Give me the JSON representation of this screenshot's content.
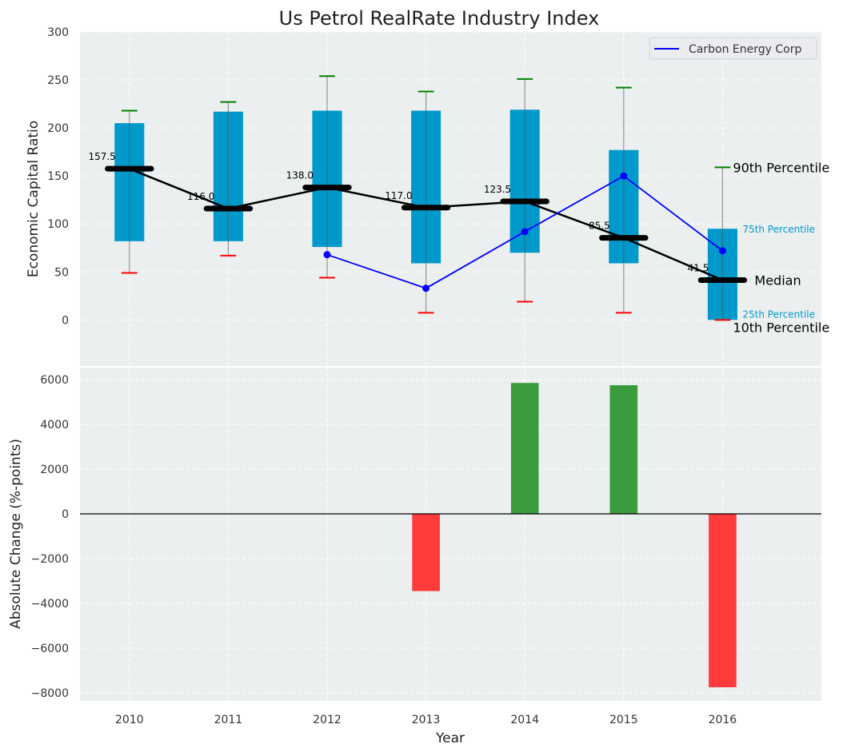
{
  "chart_data": [
    {
      "type": "box",
      "title": "Us Petrol RealRate Industry Index",
      "xlabel": "",
      "ylabel": "Economic Capital Ratio",
      "ylim": [
        -48,
        300
      ],
      "yticks": [
        0,
        50,
        100,
        150,
        200,
        250,
        300
      ],
      "grid": true,
      "categories": [
        2010,
        2011,
        2012,
        2013,
        2014,
        2015,
        2016
      ],
      "p10": [
        49,
        67,
        44,
        7.5,
        19,
        7.5,
        0
      ],
      "p25": [
        82,
        82,
        76,
        59,
        70,
        59,
        0
      ],
      "median": [
        157.5,
        116.0,
        138.0,
        117.0,
        123.5,
        85.5,
        41.5
      ],
      "median_labels": [
        "157.5",
        "116.0",
        "138.0",
        "117.0",
        "123.5",
        "85.5",
        "41.5"
      ],
      "p75": [
        205,
        217,
        218,
        218,
        219,
        177,
        95
      ],
      "p90": [
        218,
        227,
        254,
        238,
        251,
        242,
        159
      ],
      "series": [
        {
          "name": "Carbon Energy Corp",
          "x": [
            2012,
            2013,
            2014,
            2015,
            2016
          ],
          "values": [
            68,
            33,
            92,
            150,
            72
          ],
          "color": "#0000ff"
        }
      ],
      "legend": {
        "position": "top-right",
        "entries": [
          "Carbon Energy Corp"
        ]
      },
      "annotations": {
        "p90": "90th Percentile",
        "p75": "75th Percentile",
        "median": "Median",
        "p25": "25th Percentile",
        "p10": "10th Percentile"
      },
      "colors": {
        "box": "#0099cc",
        "median": "#000000",
        "p90_cap": "#008000",
        "p10_cap": "#ff0000",
        "bg": "#eceff0"
      }
    },
    {
      "type": "bar",
      "xlabel": "Year",
      "ylabel": "Absolute Change (%-points)",
      "ylim": [
        -8357,
        6536
      ],
      "yticks": [
        -8000,
        -6000,
        -4000,
        -2000,
        0,
        2000,
        4000,
        6000
      ],
      "ytick_labels": [
        "−8000",
        "−6000",
        "−4000",
        "−2000",
        "0",
        "2000",
        "4000",
        "6000"
      ],
      "categories": [
        2010,
        2011,
        2012,
        2013,
        2014,
        2015,
        2016
      ],
      "values": [
        0,
        0,
        0,
        -3450,
        5850,
        5750,
        -7750
      ],
      "colors": {
        "positive": "#3a9c3c",
        "negative": "#ff3b3b"
      }
    }
  ]
}
